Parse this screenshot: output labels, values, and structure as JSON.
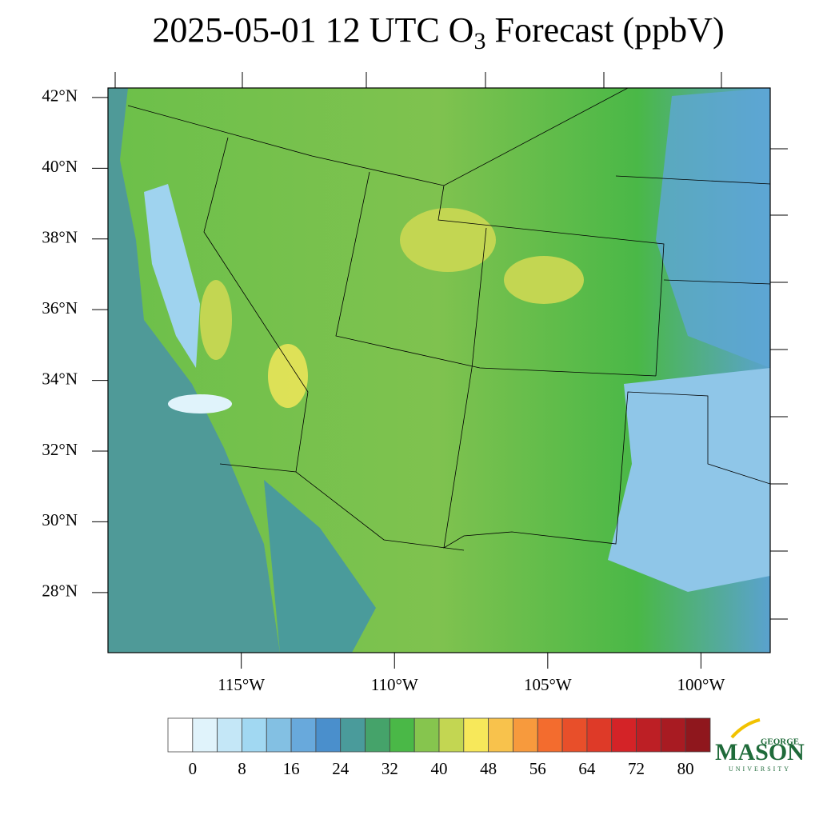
{
  "header": {
    "title": "2025-05-01 12 UTC O",
    "title_sub": "3",
    "title_end": " Forecast (ppbV)"
  },
  "map": {
    "xlim": [
      -119.35,
      -97.74
    ],
    "ylim": [
      26.3,
      42.27
    ],
    "xticks": [
      {
        "value": -115,
        "label": "115°W"
      },
      {
        "value": -110,
        "label": "110°W"
      },
      {
        "value": -105,
        "label": "105°W"
      },
      {
        "value": -100,
        "label": "100°W"
      }
    ],
    "yticks": [
      {
        "value": 42,
        "label": "42°N"
      },
      {
        "value": 40,
        "label": "40°N"
      },
      {
        "value": 38,
        "label": "38°N"
      },
      {
        "value": 36,
        "label": "36°N"
      },
      {
        "value": 34,
        "label": "34°N"
      },
      {
        "value": 32,
        "label": "32°N"
      },
      {
        "value": 30,
        "label": "30°N"
      },
      {
        "value": 28,
        "label": "28°N"
      }
    ]
  },
  "colorbar": {
    "levels": [
      0,
      4,
      8,
      12,
      16,
      20,
      24,
      28,
      32,
      36,
      40,
      44,
      48,
      52,
      56,
      60,
      64,
      68,
      72,
      76,
      80
    ],
    "colors": [
      "#ffffff",
      "#e0f3fb",
      "#c4e7f7",
      "#a1d8f2",
      "#83c0e3",
      "#68a9dc",
      "#4a8fcc",
      "#4a9b9b",
      "#45a36a",
      "#4ab847",
      "#86c54e",
      "#c3d652",
      "#f7e85a",
      "#f8c24c",
      "#f79a3d",
      "#f36c2e",
      "#e84f2a",
      "#de3a28",
      "#d42327",
      "#bd1f25",
      "#a81b22",
      "#8f171d"
    ],
    "ticks": [
      0,
      8,
      16,
      24,
      32,
      40,
      48,
      56,
      64,
      72,
      80
    ]
  },
  "logo": {
    "top": "GEORGE",
    "main": "MASON",
    "bottom": "UNIVERSITY"
  }
}
